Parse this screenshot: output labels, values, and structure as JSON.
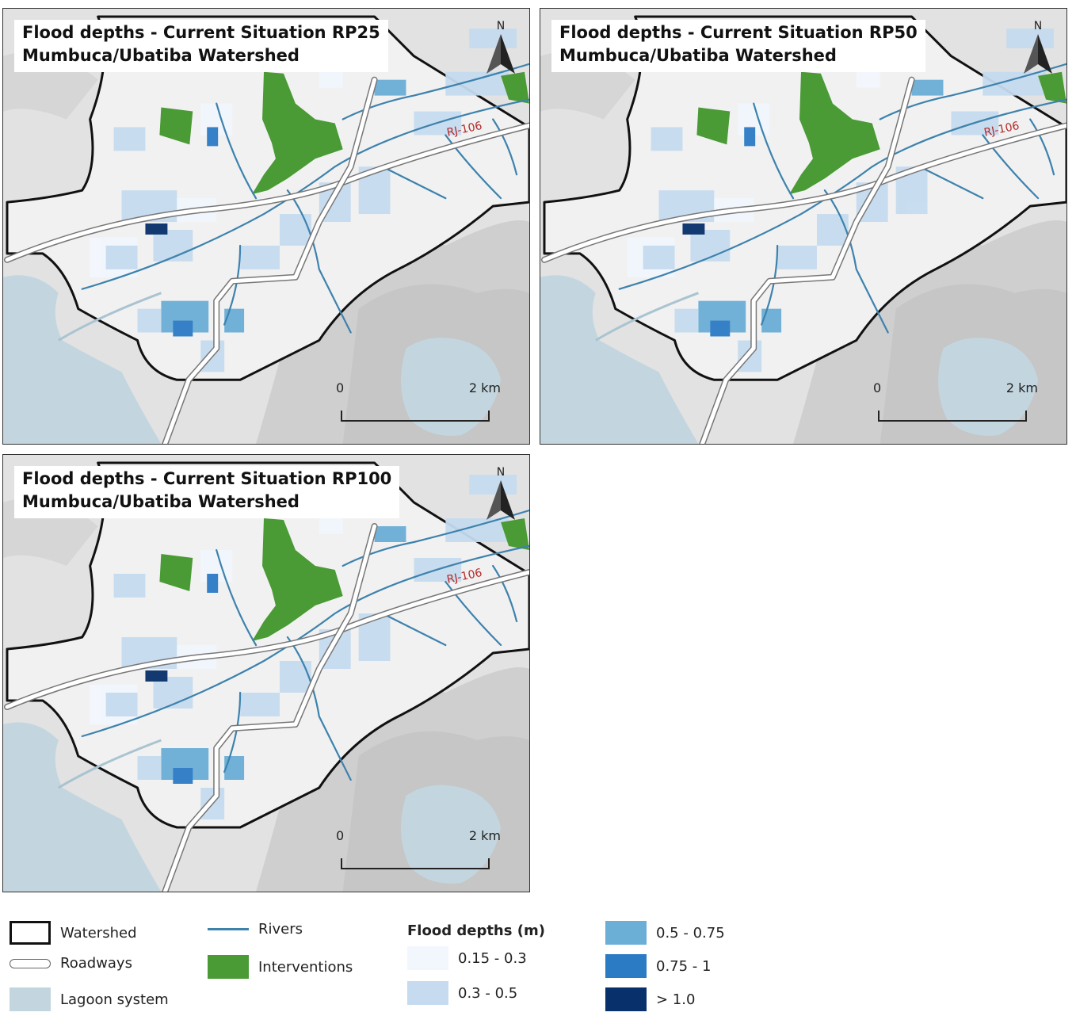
{
  "panels": [
    {
      "title_line1": "Flood depths - Current Situation RP25",
      "title_line2": "Mumbuca/Ubatiba Watershed",
      "road_label": "RJ-106",
      "north": "N",
      "scale_start": "0",
      "scale_end": "2 km"
    },
    {
      "title_line1": "Flood depths - Current Situation RP50",
      "title_line2": "Mumbuca/Ubatiba Watershed",
      "road_label": "RJ-106",
      "north": "N",
      "scale_start": "0",
      "scale_end": "2 km"
    },
    {
      "title_line1": "Flood depths - Current Situation RP100",
      "title_line2": "Mumbuca/Ubatiba Watershed",
      "road_label": "RJ-106",
      "north": "N",
      "scale_start": "0",
      "scale_end": "2 km"
    }
  ],
  "legend": {
    "watershed": "Watershed",
    "roadways": "Roadways",
    "lagoon": "Lagoon system",
    "rivers": "Rivers",
    "interventions": "Interventions",
    "flood_title": "Flood depths (m)",
    "classes": [
      "0.15 - 0.3",
      "0.3 - 0.5",
      "0.5 - 0.75",
      "0.75 - 1",
      "> 1.0"
    ]
  },
  "colors": {
    "lagoon": "#c3d6df",
    "rivers": "#3d82ad",
    "interventions": "#4a9a35",
    "watershed": "#111111",
    "road": "#ffffff",
    "road_outline": "#777777",
    "class_colors": [
      "#f2f7fd",
      "#c6dbef",
      "#6baed6",
      "#2b7bc4",
      "#08306b"
    ]
  },
  "icons": {
    "north_arrow": "north-arrow-icon"
  }
}
